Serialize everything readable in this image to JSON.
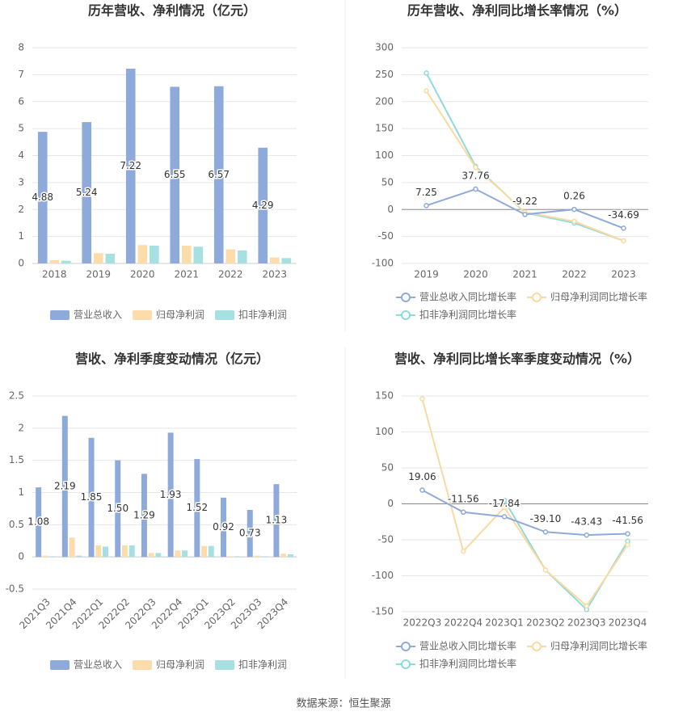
{
  "chart_data": [
    {
      "type": "bar",
      "title": "历年营收、净利情况（亿元）",
      "categories": [
        "2018",
        "2019",
        "2020",
        "2021",
        "2022",
        "2023"
      ],
      "series": [
        {
          "name": "营业总收入",
          "color": "#8eaadb",
          "values": [
            4.88,
            5.24,
            7.22,
            6.55,
            6.57,
            4.29
          ],
          "data_labels": true
        },
        {
          "name": "归母净利润",
          "color": "#fcdcaa",
          "values": [
            0.12,
            0.38,
            0.68,
            0.66,
            0.52,
            0.22
          ]
        },
        {
          "name": "扣非净利润",
          "color": "#a6e0e0",
          "values": [
            0.1,
            0.36,
            0.66,
            0.62,
            0.48,
            0.2
          ]
        }
      ],
      "ylim": [
        0,
        8
      ],
      "yticks": [
        0,
        1,
        2,
        3,
        4,
        5,
        6,
        7,
        8
      ],
      "grid": true
    },
    {
      "type": "line",
      "title": "历年营收、净利同比增长率情况（%）",
      "categories": [
        "2019",
        "2020",
        "2021",
        "2022",
        "2023"
      ],
      "series": [
        {
          "name": "营业总收入同比增长率",
          "color": "#8eaadb",
          "values": [
            7.25,
            37.76,
            -9.22,
            0.26,
            -34.69
          ],
          "data_labels": true
        },
        {
          "name": "归母净利润同比增长率",
          "color": "#fcd9a0",
          "values": [
            220,
            78,
            -5,
            -22,
            -58
          ]
        },
        {
          "name": "扣非净利润同比增长率",
          "color": "#8fdada",
          "values": [
            253,
            80,
            -6,
            -25,
            -58
          ]
        }
      ],
      "ylim": [
        -100,
        300
      ],
      "yticks": [
        -100,
        -50,
        0,
        50,
        100,
        150,
        200,
        250,
        300
      ],
      "grid": true
    },
    {
      "type": "bar",
      "title": "营收、净利季度变动情况（亿元）",
      "categories": [
        "2021Q3",
        "2021Q4",
        "2022Q1",
        "2022Q2",
        "2022Q3",
        "2022Q4",
        "2023Q1",
        "2023Q2",
        "2023Q3",
        "2023Q4"
      ],
      "series": [
        {
          "name": "营业总收入",
          "color": "#8eaadb",
          "values": [
            1.08,
            2.19,
            1.85,
            1.5,
            1.29,
            1.93,
            1.52,
            0.92,
            0.73,
            1.13
          ],
          "data_labels": true,
          "value_labels": [
            "1.08",
            "2.19",
            "1.85",
            "1.50",
            "1.29",
            "1.93",
            "1.52",
            "0.92",
            "0.73",
            "1.13"
          ]
        },
        {
          "name": "归母净利润",
          "color": "#fcdcaa",
          "values": [
            0.02,
            0.3,
            0.18,
            0.18,
            0.06,
            0.1,
            0.17,
            0.01,
            0.02,
            0.05
          ]
        },
        {
          "name": "扣非净利润",
          "color": "#a6e0e0",
          "values": [
            0.01,
            0.02,
            0.16,
            0.18,
            0.06,
            0.1,
            0.17,
            0.01,
            0.01,
            0.04
          ]
        }
      ],
      "ylim": [
        -0.5,
        2.5
      ],
      "yticks": [
        -0.5,
        0,
        0.5,
        1,
        1.5,
        2,
        2.5
      ],
      "grid": true,
      "rotate_x_labels": true
    },
    {
      "type": "line",
      "title": "营收、净利同比增长率季度变动情况（%）",
      "categories": [
        "2022Q3",
        "2022Q4",
        "2023Q1",
        "2023Q2",
        "2023Q3",
        "2023Q4"
      ],
      "series": [
        {
          "name": "营业总收入同比增长率",
          "color": "#8eaadb",
          "values": [
            19.06,
            -11.56,
            -17.84,
            -39.1,
            -43.43,
            -41.56
          ],
          "data_labels": true,
          "value_labels": [
            "19.06",
            "-11.56",
            "-17.84",
            "-39.10",
            "-43.43",
            "-41.56"
          ]
        },
        {
          "name": "归母净利润同比增长率",
          "color": "#fcd9a0",
          "values": [
            146,
            -66,
            -5,
            -92,
            -142,
            -57
          ]
        },
        {
          "name": "扣非净利润同比增长率",
          "color": "#8fdada",
          "values": [
            null,
            null,
            5,
            -92,
            -147,
            -52
          ]
        }
      ],
      "ylim": [
        -150,
        150
      ],
      "yticks": [
        -150,
        -100,
        -50,
        0,
        50,
        100,
        150
      ],
      "grid": true
    }
  ],
  "source": "数据来源：恒生聚源"
}
